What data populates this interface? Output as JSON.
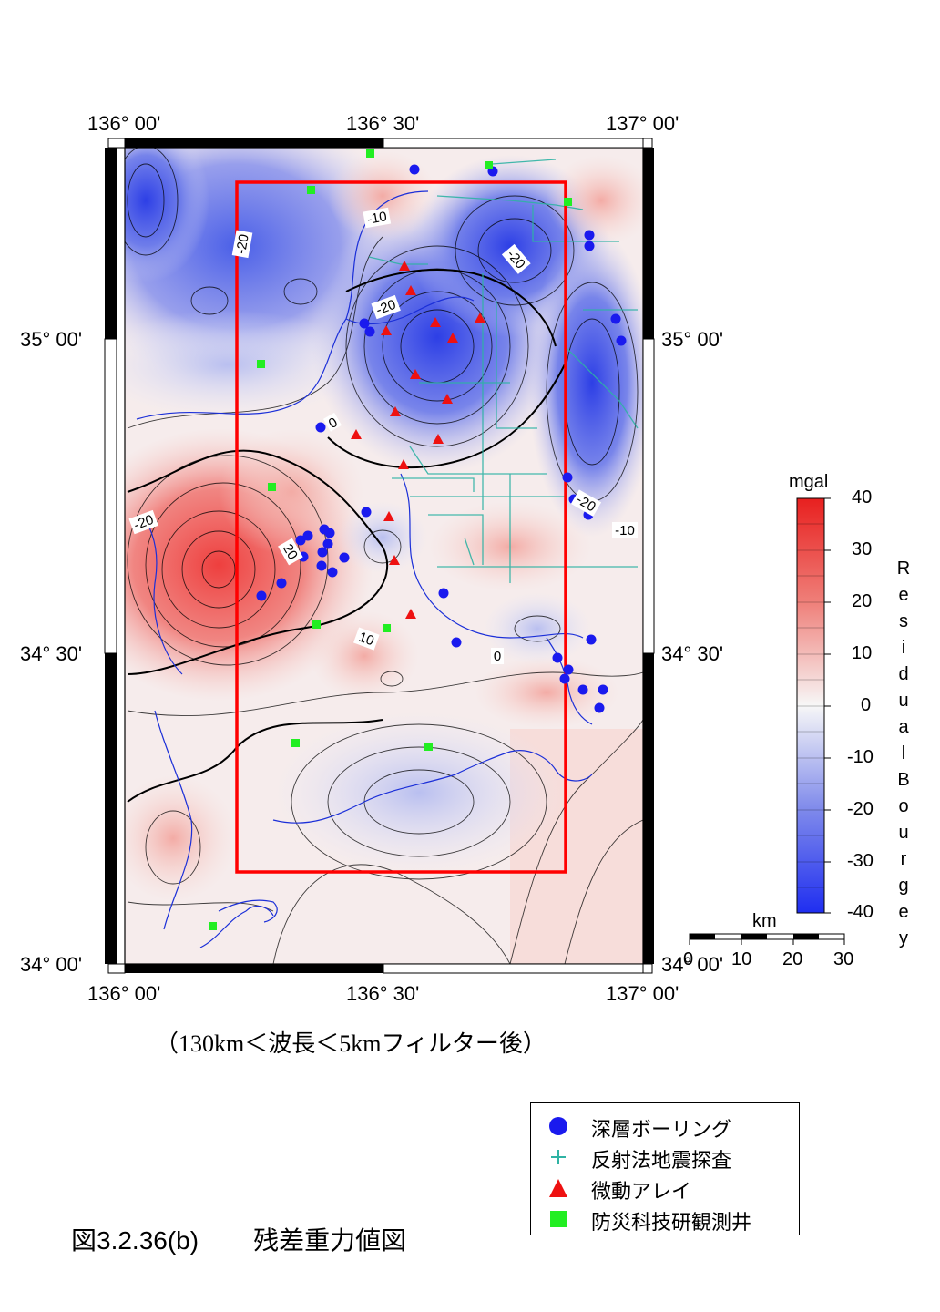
{
  "map": {
    "top_labels": [
      "136° 00'",
      "136° 30'",
      "137° 00'"
    ],
    "bottom_labels": [
      "136° 00'",
      "136° 30'",
      "137° 00'"
    ],
    "left_labels": [
      "35° 00'",
      "34° 30'",
      "34° 00'"
    ],
    "right_labels": [
      "35° 00'",
      "34° 30'",
      "34° 00'"
    ],
    "contour_labels": [
      "-20",
      "-10",
      "-20",
      "-20",
      "-20",
      "20",
      "-20",
      "10",
      "0",
      "-20",
      "-10"
    ],
    "colors": {
      "positive": "#e8514f",
      "negative": "#3a4fe0",
      "neutral": "#f7f4f4",
      "study_area": "#ff0000",
      "borehole": "#1a1aee",
      "seismic": "#2fb3a4",
      "microtremor": "#ee1111",
      "well": "#22ee22"
    }
  },
  "colorbar": {
    "unit": "mgal",
    "ticks": [
      "40",
      "30",
      "20",
      "10",
      "0",
      "-10",
      "-20",
      "-30",
      "-40"
    ],
    "title": "ResidualBourgey",
    "title_chars": [
      "R",
      "e",
      "s",
      "i",
      "d",
      "u",
      "a",
      "l",
      "B",
      "o",
      "u",
      "r",
      "g",
      "e",
      "y"
    ]
  },
  "scalebar": {
    "unit": "km",
    "ticks": [
      "0",
      "10",
      "20",
      "30"
    ]
  },
  "caption": "（130km＜波長＜5kmフィルター後）",
  "legend": {
    "items": [
      {
        "label": "深層ボーリング",
        "symbol": "circle"
      },
      {
        "label": "反射法地震探査",
        "symbol": "plus"
      },
      {
        "label": "微動アレイ",
        "symbol": "triangle"
      },
      {
        "label": "防災科技研観測井",
        "symbol": "square"
      }
    ]
  },
  "figure_title": {
    "number": "図3.2.36(b)",
    "title": "残差重力値図"
  }
}
